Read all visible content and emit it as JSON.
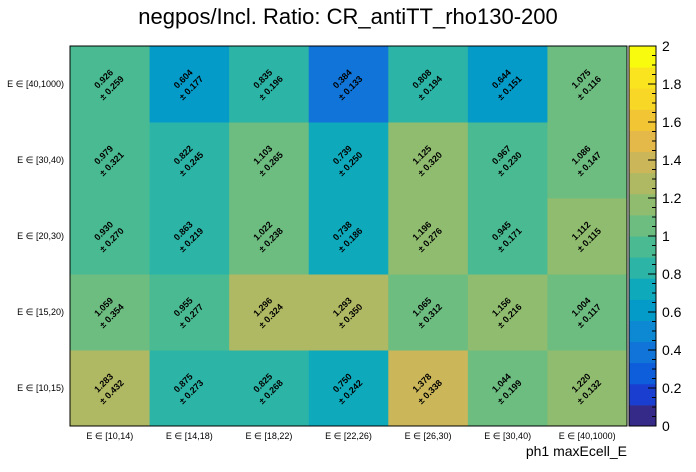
{
  "chart_data": {
    "type": "heatmap",
    "title": "negpos/Incl. Ratio: CR_antiTT_rho130-200",
    "xlabel": "ph1 maxEcell_E",
    "ylabel": "",
    "x_categories": [
      "E ∈ [10,14)",
      "E ∈ [14,18)",
      "E ∈ [18,22)",
      "E ∈ [22,26)",
      "E ∈ [26,30)",
      "E ∈ [30,40)",
      "E ∈ [40,1000)"
    ],
    "y_categories": [
      "E ∈ [10,15)",
      "E ∈ [15,20)",
      "E ∈ [20,30)",
      "E ∈ [30,40)",
      "E ∈ [40,1000)"
    ],
    "zlim": [
      0,
      2
    ],
    "colorbar_ticks": [
      "0",
      "0.2",
      "0.4",
      "0.6",
      "0.8",
      "1",
      "1.2",
      "1.4",
      "1.6",
      "1.8",
      "2"
    ],
    "values": [
      [
        "1.283",
        "0.875",
        "0.825",
        "0.750",
        "1.378",
        "1.044",
        "1.220"
      ],
      [
        "1.059",
        "0.955",
        "1.296",
        "1.293",
        "1.065",
        "1.156",
        "1.004"
      ],
      [
        "0.930",
        "0.863",
        "1.022",
        "0.738",
        "1.196",
        "0.945",
        "1.112"
      ],
      [
        "0.979",
        "0.822",
        "1.103",
        "0.739",
        "1.125",
        "0.967",
        "1.086"
      ],
      [
        "0.926",
        "0.604",
        "0.835",
        "0.384",
        "0.808",
        "0.644",
        "1.075"
      ]
    ],
    "errors": [
      [
        "± 0.432",
        "± 0.273",
        "± 0.268",
        "± 0.242",
        "± 0.338",
        "± 0.199",
        "± 0.132"
      ],
      [
        "± 0.354",
        "± 0.277",
        "± 0.324",
        "± 0.350",
        "± 0.312",
        "± 0.216",
        "± 0.117"
      ],
      [
        "± 0.270",
        "± 0.219",
        "± 0.238",
        "± 0.186",
        "± 0.276",
        "± 0.171",
        "± 0.115"
      ],
      [
        "± 0.321",
        "± 0.245",
        "± 0.265",
        "± 0.250",
        "± 0.320",
        "± 0.230",
        "± 0.147"
      ],
      [
        "± 0.259",
        "± 0.177",
        "± 0.196",
        "± 0.133",
        "± 0.194",
        "± 0.151",
        "± 0.116"
      ]
    ],
    "colorbar_palette": [
      "#352a87",
      "#1a3fd0",
      "#0e5ddb",
      "#1074d8",
      "#0d88d2",
      "#059bc8",
      "#0eaabc",
      "#2cb5a6",
      "#4aba92",
      "#6dbc80",
      "#8fbc6f",
      "#afb862",
      "#cbb65a",
      "#e4b94a",
      "#f2c535",
      "#f8d726",
      "#f9e41f",
      "#f9fb0e"
    ]
  }
}
